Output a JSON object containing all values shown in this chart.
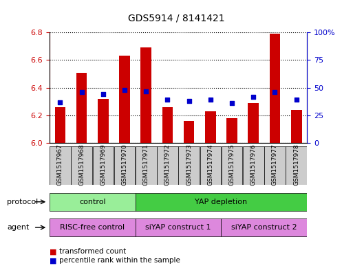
{
  "title": "GDS5914 / 8141421",
  "samples": [
    "GSM1517967",
    "GSM1517968",
    "GSM1517969",
    "GSM1517970",
    "GSM1517971",
    "GSM1517972",
    "GSM1517973",
    "GSM1517974",
    "GSM1517975",
    "GSM1517976",
    "GSM1517977",
    "GSM1517978"
  ],
  "transformed_count": [
    6.26,
    6.51,
    6.32,
    6.63,
    6.69,
    6.26,
    6.16,
    6.23,
    6.18,
    6.29,
    6.79,
    6.24
  ],
  "percentile_rank": [
    37,
    46,
    44,
    48,
    47,
    39,
    38,
    39,
    36,
    42,
    46,
    39
  ],
  "ymin": 6.0,
  "ymax": 6.8,
  "yticks": [
    6.0,
    6.2,
    6.4,
    6.6,
    6.8
  ],
  "y2min": 0,
  "y2max": 100,
  "y2ticks": [
    0,
    25,
    50,
    75,
    100
  ],
  "y2ticklabels": [
    "0",
    "25",
    "50",
    "75",
    "100%"
  ],
  "bar_color": "#cc0000",
  "dot_color": "#0000cc",
  "bar_width": 0.5,
  "protocol_labels": [
    {
      "text": "control",
      "start": 0,
      "end": 3,
      "color": "#99ee99"
    },
    {
      "text": "YAP depletion",
      "start": 4,
      "end": 11,
      "color": "#44cc44"
    }
  ],
  "agent_labels": [
    {
      "text": "RISC-free control",
      "start": 0,
      "end": 3,
      "color": "#dd88dd"
    },
    {
      "text": "siYAP construct 1",
      "start": 4,
      "end": 7,
      "color": "#dd88dd"
    },
    {
      "text": "siYAP construct 2",
      "start": 8,
      "end": 11,
      "color": "#dd88dd"
    }
  ],
  "legend_items": [
    {
      "label": "transformed count",
      "color": "#cc0000"
    },
    {
      "label": "percentile rank within the sample",
      "color": "#0000cc"
    }
  ],
  "tick_color_left": "#cc0000",
  "tick_color_right": "#0000cc",
  "sample_box_color": "#cccccc",
  "protocol_row_label": "protocol",
  "agent_row_label": "agent",
  "fig_width": 5.13,
  "fig_height": 3.93
}
